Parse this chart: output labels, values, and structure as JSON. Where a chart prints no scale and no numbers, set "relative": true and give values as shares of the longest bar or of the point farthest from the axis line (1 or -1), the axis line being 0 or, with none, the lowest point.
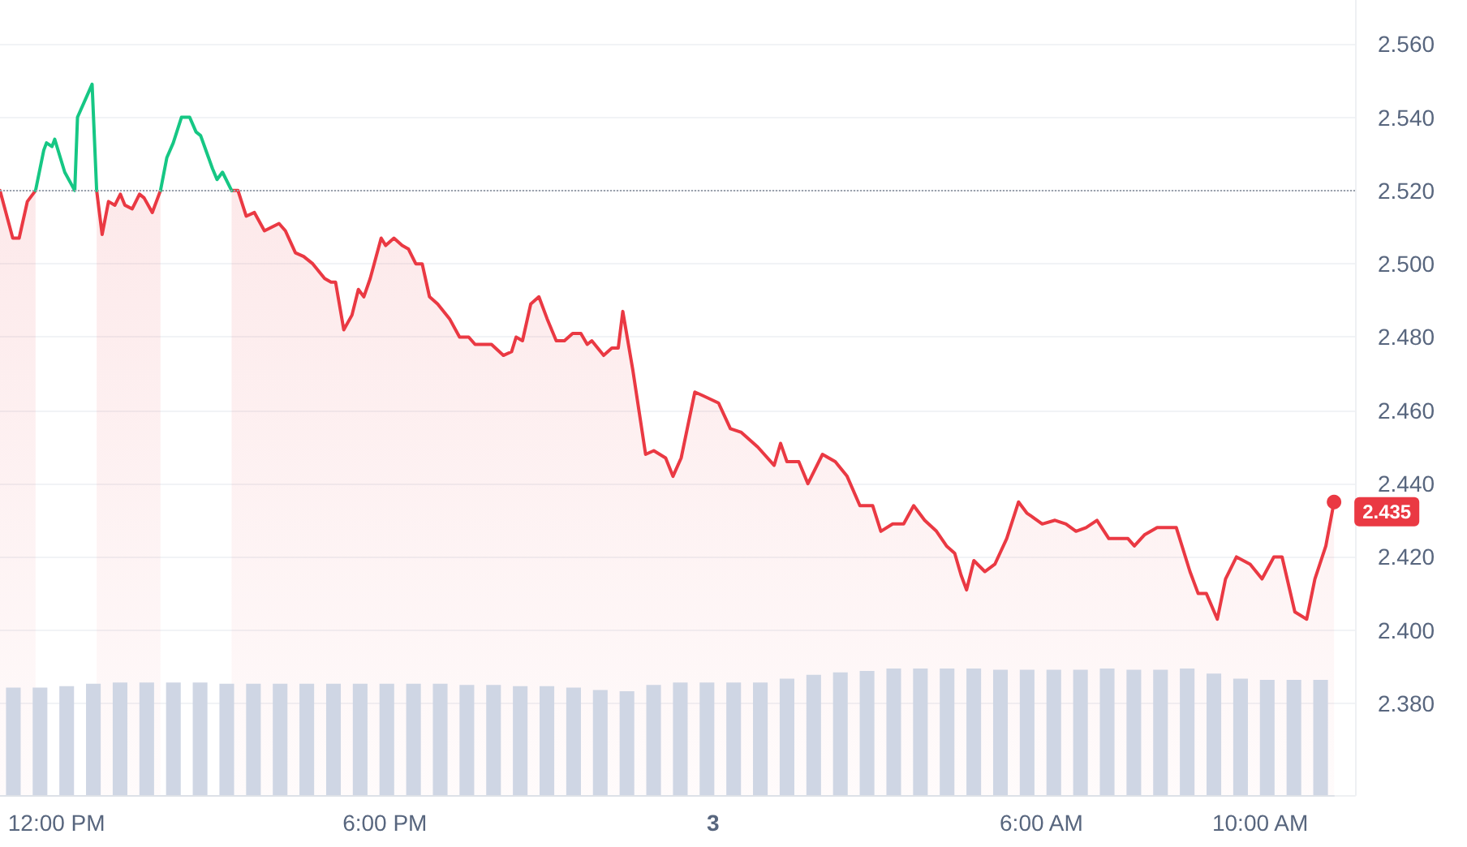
{
  "chart_data": [
    {
      "type": "area",
      "series": [
        {
          "color": "#ea3943",
          "x": [
            "--03-02T10:58",
            "--03-02T11:12",
            "--03-02T11:19",
            "--03-02T11:28",
            "--03-02T11:37",
            "--03-02T11:46",
            "--03-02T12:44",
            "--03-02T12:50",
            "--03-02T12:57",
            "--03-02T13:04",
            "--03-02T13:10",
            "--03-02T13:15",
            "--03-02T13:23",
            "--03-02T13:31",
            "--03-02T13:36",
            "--03-02T13:45",
            "--03-02T13:54",
            "--03-02T14:01",
            "--03-02T15:12",
            "--03-02T15:19",
            "--03-02T15:28",
            "--03-02T15:37",
            "--03-02T15:48",
            "--03-02T16:04",
            "--03-02T16:11",
            "--03-02T16:22",
            "--03-02T16:31",
            "--03-02T16:41",
            "--03-02T16:54",
            "--03-02T17:01",
            "--03-02T17:06",
            "--03-02T17:15",
            "--03-02T17:24",
            "--03-02T17:31",
            "--03-02T17:37",
            "--03-02T17:44",
            "--03-02T17:56",
            "--03-02T18:01",
            "--03-02T18:10",
            "--03-02T18:19",
            "--03-02T18:26",
            "--03-02T18:34",
            "--03-02T18:41",
            "--03-02T18:49",
            "--03-02T18:58",
            "--03-02T19:11",
            "--03-02T19:22",
            "--03-02T19:32",
            "--03-02T19:39",
            "--03-02T19:48",
            "--03-02T19:57",
            "--03-02T20:10",
            "--03-02T20:19",
            "--03-02T20:24",
            "--03-02T20:31",
            "--03-02T20:40",
            "--03-02T20:49",
            "--03-02T20:58",
            "--03-02T21:08",
            "--03-02T21:17",
            "--03-02T21:26",
            "--03-02T21:35",
            "--03-02T21:42",
            "--03-02T21:47",
            "--03-02T22:00",
            "--03-02T22:09",
            "--03-02T22:16",
            "--03-02T22:21",
            "--03-02T22:32",
            "--03-02T22:46",
            "--03-02T22:55",
            "--03-02T23:08",
            "--03-02T23:16",
            "--03-02T23:25",
            "--03-02T23:40",
            "--03-02T23:49",
            "--03-03T00:06",
            "--03-03T00:19",
            "--03-03T00:31",
            "--03-03T00:49",
            "--03-03T01:07",
            "--03-03T01:14",
            "--03-03T01:21",
            "--03-03T01:34",
            "--03-03T01:44",
            "--03-03T02:00",
            "--03-03T02:14",
            "--03-03T02:27",
            "--03-03T02:41",
            "--03-03T02:55",
            "--03-03T03:04",
            "--03-03T03:17",
            "--03-03T03:29",
            "--03-03T03:40",
            "--03-03T03:52",
            "--03-03T04:05",
            "--03-03T04:16",
            "--03-03T04:25",
            "--03-03T04:32",
            "--03-03T04:38",
            "--03-03T04:46",
            "--03-03T04:58",
            "--03-03T05:09",
            "--03-03T05:22",
            "--03-03T05:35",
            "--03-03T05:44",
            "--03-03T06:01",
            "--03-03T06:15",
            "--03-03T06:27",
            "--03-03T06:38",
            "--03-03T06:49",
            "--03-03T07:01",
            "--03-03T07:14",
            "--03-03T07:35",
            "--03-03T07:42",
            "--03-03T07:53",
            "--03-03T08:07",
            "--03-03T08:28",
            "--03-03T08:43",
            "--03-03T08:52",
            "--03-03T09:01",
            "--03-03T09:13",
            "--03-03T09:22",
            "--03-03T09:34",
            "--03-03T09:49",
            "--03-03T10:02",
            "--03-03T10:15",
            "--03-03T10:24",
            "--03-03T10:38",
            "--03-03T10:51",
            "--03-03T11:00",
            "--03-03T11:12",
            "--03-03T11:21"
          ],
          "values": [
            2.52,
            2.507,
            2.507,
            2.517,
            2.52,
            null,
            2.52,
            2.508,
            2.517,
            2.516,
            2.519,
            2.516,
            2.515,
            2.519,
            2.518,
            2.514,
            2.52,
            null,
            2.52,
            2.52,
            2.513,
            2.514,
            2.509,
            2.511,
            2.509,
            2.503,
            2.502,
            2.5,
            2.496,
            2.495,
            2.495,
            2.482,
            2.486,
            2.493,
            2.491,
            2.496,
            2.507,
            2.505,
            2.507,
            2.505,
            2.504,
            2.5,
            2.5,
            2.491,
            2.489,
            2.485,
            2.48,
            2.48,
            2.478,
            2.478,
            2.478,
            2.475,
            2.476,
            2.48,
            2.479,
            2.489,
            2.491,
            2.485,
            2.479,
            2.479,
            2.481,
            2.481,
            2.478,
            2.479,
            2.475,
            2.477,
            2.477,
            2.487,
            2.471,
            2.448,
            2.449,
            2.447,
            2.442,
            2.447,
            2.465,
            2.464,
            2.462,
            2.455,
            2.454,
            2.45,
            2.445,
            2.451,
            2.446,
            2.446,
            2.44,
            2.448,
            2.446,
            2.442,
            2.434,
            2.434,
            2.427,
            2.429,
            2.429,
            2.434,
            2.43,
            2.427,
            2.423,
            2.421,
            2.415,
            2.411,
            2.419,
            2.416,
            2.418,
            2.425,
            2.435,
            2.432,
            2.429,
            2.43,
            2.429,
            2.427,
            2.428,
            2.43,
            2.425,
            2.425,
            2.423,
            2.426,
            2.428,
            2.428,
            2.416,
            2.41,
            2.41,
            2.403,
            2.414,
            2.42,
            2.418,
            2.414,
            2.42,
            2.42,
            2.405,
            2.403,
            2.414,
            2.423,
            2.435
          ],
          "value_labels": [
            null,
            null,
            null,
            null,
            null,
            null,
            null,
            null,
            null,
            null,
            null,
            null,
            null,
            null,
            null,
            null,
            null,
            null,
            null,
            null,
            null,
            null,
            null,
            null,
            null,
            null,
            null,
            null,
            null,
            null,
            null,
            null,
            null,
            null,
            null,
            null,
            null,
            null,
            null,
            null,
            null,
            null,
            null,
            null,
            null,
            null,
            null,
            null,
            null,
            null,
            null,
            null,
            null,
            null,
            null,
            null,
            null,
            null,
            null,
            null,
            null,
            null,
            null,
            null,
            null,
            null,
            null,
            null,
            null,
            null,
            null,
            null,
            null,
            null,
            null,
            null,
            null,
            null,
            null,
            null,
            null,
            null,
            null,
            null,
            null,
            null,
            null,
            null,
            null,
            null,
            null,
            null,
            null,
            null,
            null,
            null,
            null,
            null,
            null,
            null,
            null,
            null,
            null,
            null,
            null,
            null,
            null,
            null,
            null,
            null,
            null,
            null,
            null,
            null,
            null,
            null,
            null,
            null,
            null,
            null,
            null,
            null,
            null,
            null,
            null,
            null,
            null,
            null,
            null,
            null,
            null,
            null,
            "2.435"
          ]
        },
        {
          "type": "line",
          "color": "#16c784",
          "x": [
            "--03-02T11:37",
            "--03-02T11:46",
            "--03-02T11:49",
            "--03-02T11:55",
            "--03-02T11:58",
            "--03-02T12:09",
            "--03-02T12:20",
            "--03-02T12:23",
            "--03-02T12:39",
            "--03-02T12:44",
            "--03-02T12:50",
            "--03-02T13:54",
            "--03-02T14:01",
            "--03-02T14:08",
            "--03-02T14:17",
            "--03-02T14:26",
            "--03-02T14:33",
            "--03-02T14:38",
            "--03-02T14:51",
            "--03-02T14:56",
            "--03-02T15:02",
            "--03-02T15:12"
          ],
          "values": [
            2.52,
            2.531,
            2.533,
            2.532,
            2.534,
            2.525,
            2.52,
            2.54,
            2.549,
            2.52,
            null,
            2.52,
            2.529,
            2.533,
            2.54,
            2.54,
            2.536,
            2.535,
            2.526,
            2.523,
            2.525,
            2.52
          ]
        }
      ],
      "xlim": [
        "--03-02T10:58",
        "--03-03T11:44"
      ],
      "xticks": [
        {
          "value": "--03-02T12:00",
          "label": "12:00 PM"
        },
        {
          "value": "--03-02T18:00",
          "label": "6:00 PM"
        },
        {
          "value": "--03-03T00:00",
          "label": "3"
        },
        {
          "value": "--03-03T06:00",
          "label": "6:00 AM"
        },
        {
          "value": "--03-03T10:00",
          "label": "10:00 AM"
        }
      ],
      "ylim": [
        2.355,
        2.572
      ],
      "yticks": [
        {
          "value": 2.38,
          "label": "2.380"
        },
        {
          "value": 2.4,
          "label": "2.400"
        },
        {
          "value": 2.42,
          "label": "2.420"
        },
        {
          "value": 2.44,
          "label": "2.440"
        },
        {
          "value": 2.46,
          "label": "2.460"
        },
        {
          "value": 2.48,
          "label": "2.480"
        },
        {
          "value": 2.5,
          "label": "2.500"
        },
        {
          "value": 2.52,
          "label": "2.520"
        },
        {
          "value": 2.54,
          "label": "2.540"
        },
        {
          "value": 2.56,
          "label": "2.560"
        }
      ],
      "ref_lines": [
        {
          "axis": "y",
          "value": 2.52,
          "color": "#9aa0ab",
          "line_style": "dotted"
        }
      ],
      "grid": "y"
    },
    {
      "type": "bar",
      "relative": true,
      "color": "#cfd6e4",
      "categories": [
        null,
        null,
        null,
        null,
        null,
        null,
        null,
        null,
        null,
        null,
        null,
        null,
        null,
        null,
        null,
        null,
        null,
        null,
        null,
        null,
        null,
        null,
        null,
        null,
        null,
        null,
        null,
        null,
        null,
        null,
        null,
        null,
        null,
        null,
        null,
        null,
        null,
        null,
        null,
        null,
        null,
        null,
        null,
        null,
        null,
        null,
        null,
        null,
        null,
        null
      ],
      "values": [
        0.85,
        0.85,
        0.86,
        0.88,
        0.89,
        0.89,
        0.89,
        0.89,
        0.88,
        0.88,
        0.88,
        0.88,
        0.88,
        0.88,
        0.88,
        0.88,
        0.88,
        0.87,
        0.87,
        0.86,
        0.86,
        0.85,
        0.83,
        0.82,
        0.87,
        0.89,
        0.89,
        0.89,
        0.89,
        0.92,
        0.95,
        0.97,
        0.98,
        1,
        1,
        1,
        1,
        0.99,
        0.99,
        0.99,
        0.99,
        1,
        0.99,
        0.99,
        1,
        0.96,
        0.92,
        0.91,
        0.91,
        0.91
      ]
    }
  ]
}
